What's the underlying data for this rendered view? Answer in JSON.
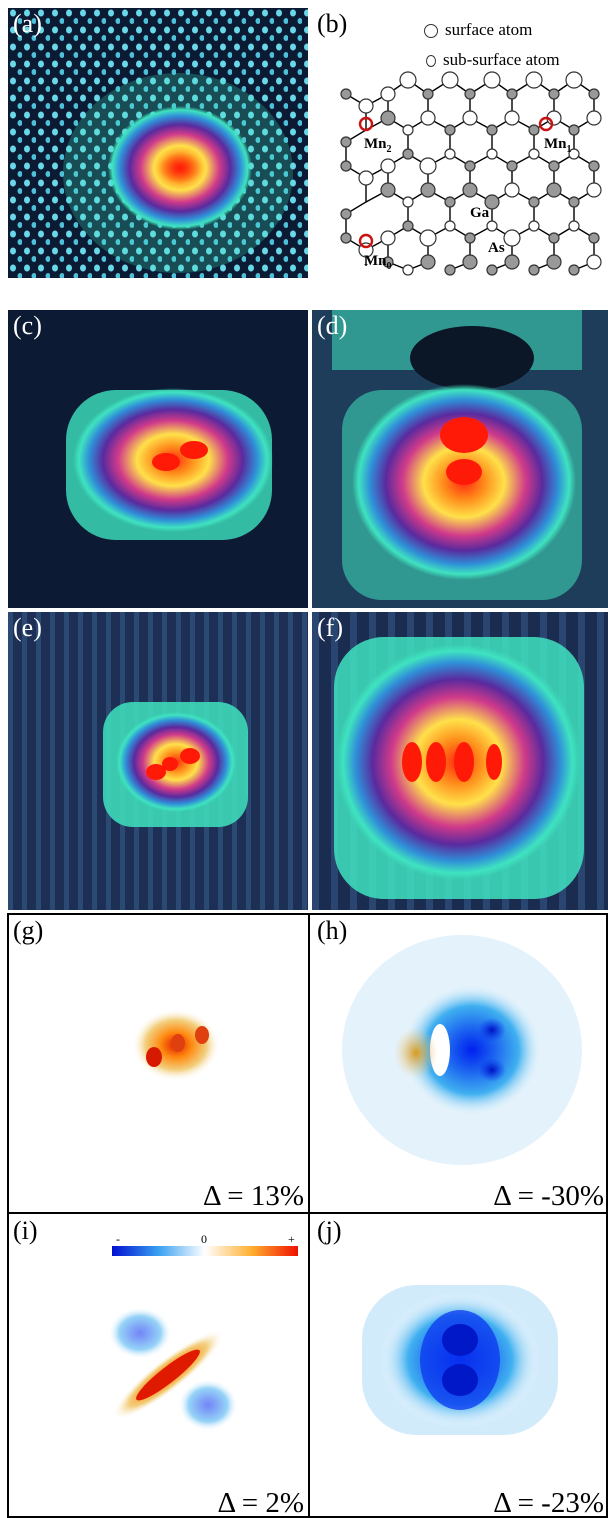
{
  "panels": {
    "a": {
      "label": "(a)"
    },
    "b": {
      "label": "(b)"
    },
    "c": {
      "label": "(c)"
    },
    "d": {
      "label": "(d)"
    },
    "e": {
      "label": "(e)"
    },
    "f": {
      "label": "(f)"
    },
    "g": {
      "label": "(g)",
      "delta": "Δ = 13%"
    },
    "h": {
      "label": "(h)",
      "delta": "Δ = -30%"
    },
    "i": {
      "label": "(i)",
      "delta": "Δ = 2%"
    },
    "j": {
      "label": "(j)",
      "delta": "Δ = -23%"
    }
  },
  "lattice_legend": {
    "surface": "surface atom",
    "subsurface": "sub-surface atom"
  },
  "lattice_labels": {
    "mn2": "Mn",
    "mn2_sub": "2",
    "mn1": "Mn",
    "mn1_sub": "1",
    "mn0": "Mn",
    "mn0_sub": "0",
    "ga": "Ga",
    "as": "As"
  },
  "colorbar": {
    "minus": "-",
    "zero": "0",
    "plus": "+"
  },
  "colors": {
    "stm_background": "#0c1a33",
    "stm_low": "#3fe3c0",
    "stm_mid": "#6a2e9e",
    "stm_high": "#ffe14a",
    "stm_peak": "#ff2a10",
    "diff_negative": "#0033ff",
    "diff_positive": "#ff2a00",
    "mn_ring": "#cc1111"
  }
}
